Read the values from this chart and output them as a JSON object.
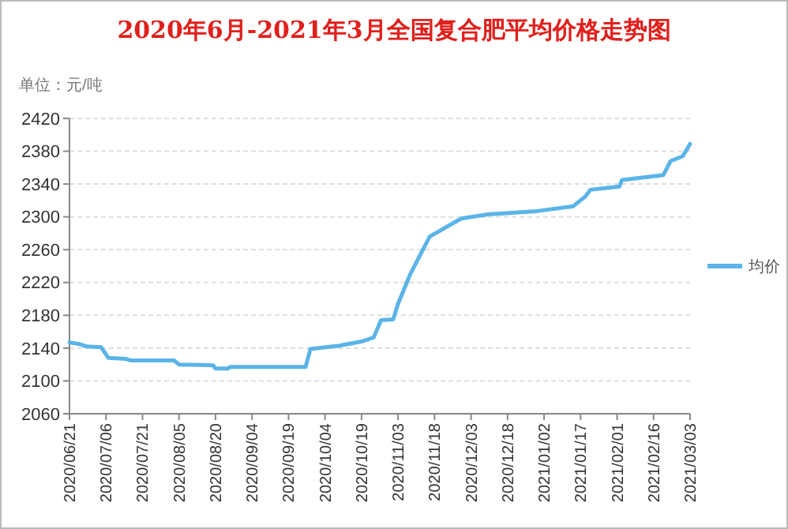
{
  "chart_data": {
    "type": "line",
    "title": "2020年6月-2021年3月全国复合肥平均价格走势图",
    "ylabel": "单位：元/吨",
    "x": [
      "2020-06-21",
      "2020-06-25",
      "2020-06-28",
      "2020-07-04",
      "2020-07-07",
      "2020-07-14",
      "2020-07-16",
      "2020-08-03",
      "2020-08-05",
      "2020-08-19",
      "2020-08-20",
      "2020-08-25",
      "2020-08-26",
      "2020-09-26",
      "2020-09-28",
      "2020-10-10",
      "2020-10-19",
      "2020-10-24",
      "2020-10-27",
      "2020-11-01",
      "2020-11-03",
      "2020-11-08",
      "2020-11-16",
      "2020-11-29",
      "2020-12-10",
      "2020-12-30",
      "2021-01-14",
      "2021-01-19",
      "2021-01-21",
      "2021-02-02",
      "2021-02-03",
      "2021-02-20",
      "2021-02-23",
      "2021-02-28",
      "2021-03-03"
    ],
    "series": [
      {
        "name": "均价",
        "color": "#5ab4e8",
        "values": [
          2147,
          2145,
          2142,
          2141,
          2128,
          2127,
          2125,
          2125,
          2120,
          2119,
          2115,
          2115,
          2117,
          2117,
          2139,
          2143,
          2148,
          2153,
          2174,
          2175,
          2194,
          2230,
          2276,
          2298,
          2303,
          2307,
          2313,
          2325,
          2333,
          2337,
          2345,
          2351,
          2368,
          2374,
          2389
        ]
      }
    ],
    "xlim": [
      "2020-06-21",
      "2021-03-03"
    ],
    "xticks": [
      {
        "value": "2020-06-21",
        "label": "2020/06/21"
      },
      {
        "value": "2020-07-06",
        "label": "2020/07/06"
      },
      {
        "value": "2020-07-21",
        "label": "2020/07/21"
      },
      {
        "value": "2020-08-05",
        "label": "2020/08/05"
      },
      {
        "value": "2020-08-20",
        "label": "2020/08/20"
      },
      {
        "value": "2020-09-04",
        "label": "2020/09/04"
      },
      {
        "value": "2020-09-19",
        "label": "2020/09/19"
      },
      {
        "value": "2020-10-04",
        "label": "2020/10/04"
      },
      {
        "value": "2020-10-19",
        "label": "2020/10/19"
      },
      {
        "value": "2020-11-03",
        "label": "2020/11/03"
      },
      {
        "value": "2020-11-18",
        "label": "2020/11/18"
      },
      {
        "value": "2020-12-03",
        "label": "2020/12/03"
      },
      {
        "value": "2020-12-18",
        "label": "2020/12/18"
      },
      {
        "value": "2021-01-02",
        "label": "2021/01/02"
      },
      {
        "value": "2021-01-17",
        "label": "2021/01/17"
      },
      {
        "value": "2021-02-01",
        "label": "2021/02/01"
      },
      {
        "value": "2021-02-16",
        "label": "2021/02/16"
      },
      {
        "value": "2021-03-03",
        "label": "2021/03/03"
      }
    ],
    "ylim": [
      2060,
      2420
    ],
    "yticks": [
      2060,
      2100,
      2140,
      2180,
      2220,
      2260,
      2300,
      2340,
      2380,
      2420
    ],
    "grid": "y",
    "legend": "right",
    "marker": "none",
    "line_style": "solid"
  }
}
